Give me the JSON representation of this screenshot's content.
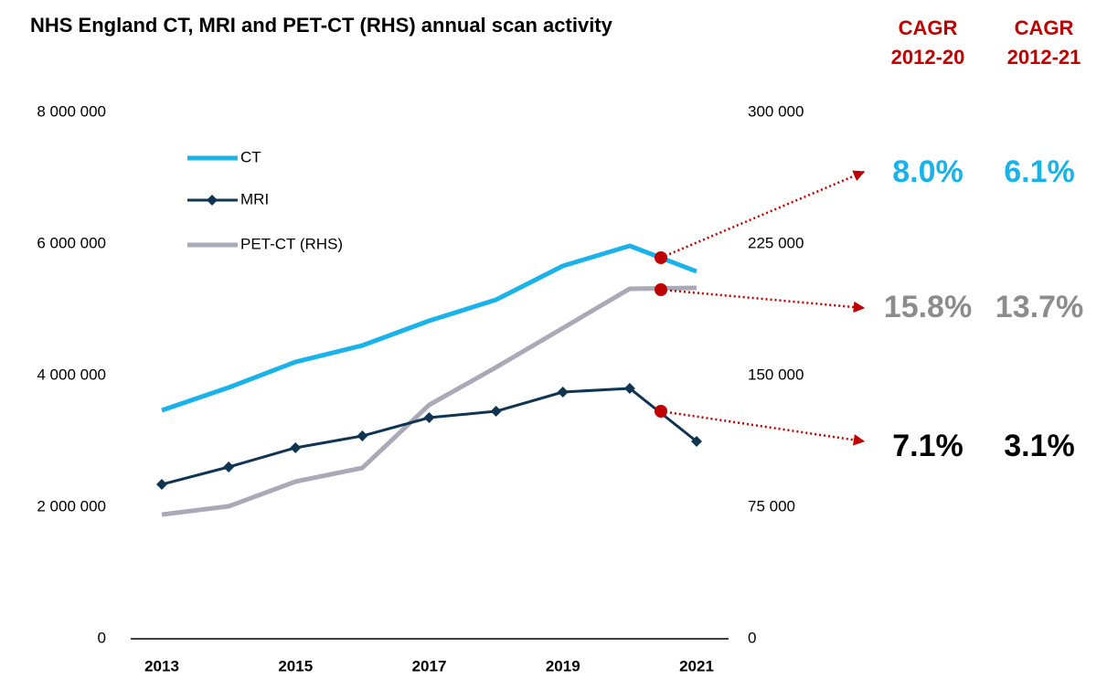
{
  "chart_data": {
    "type": "line",
    "title": "NHS England CT, MRI and PET-CT (RHS) annual scan activity",
    "categories": [
      "2013",
      null,
      "2015",
      null,
      "2017",
      null,
      "2019",
      null,
      "2021"
    ],
    "series": [
      {
        "name": "CT",
        "color": "#19b3ea",
        "values": [
          3472000,
          3819000,
          4208000,
          4458000,
          4833000,
          5153000,
          5667000,
          5972000,
          5583000
        ]
      },
      {
        "name": "MRI",
        "color": "#0f3553",
        "marker": "diamond",
        "values": [
          2347000,
          2611000,
          2903000,
          3083000,
          3361000,
          3458000,
          3750000,
          3806000,
          3000000
        ]
      },
      {
        "name": "PET-CT (RHS)",
        "color": "#a9a9b7",
        "axis": "y2",
        "values": [
          70800,
          75500,
          89600,
          97400,
          133300,
          154700,
          177100,
          199500,
          200000
        ]
      }
    ],
    "ylim": [
      0,
      8000000
    ],
    "yticks": [
      0,
      {
        "value": 2000000,
        "label": "2 000 000"
      },
      {
        "value": 4000000,
        "label": "4 000 000"
      },
      {
        "value": 6000000,
        "label": "6 000 000"
      },
      {
        "value": 8000000,
        "label": "8 000 000"
      }
    ],
    "y2lim": [
      0,
      300000
    ],
    "y2ticks": [
      0,
      {
        "value": 75000,
        "label": "75 000"
      },
      {
        "value": 150000,
        "label": "150 000"
      },
      {
        "value": 225000,
        "label": "225 000"
      },
      {
        "value": 300000,
        "label": "300 000"
      }
    ],
    "legend": "upper left",
    "cagr": {
      "headers": [
        [
          "CAGR",
          "2012-20"
        ],
        [
          "CAGR",
          "2012-21"
        ]
      ],
      "rows": [
        {
          "series": "CT",
          "labels": [
            "8.0%",
            "6.1%"
          ]
        },
        {
          "series": "PET-CT (RHS)",
          "labels": [
            "15.8%",
            "13.7%"
          ]
        },
        {
          "series": "MRI",
          "labels": [
            "7.1%",
            "3.1%"
          ]
        }
      ]
    }
  }
}
